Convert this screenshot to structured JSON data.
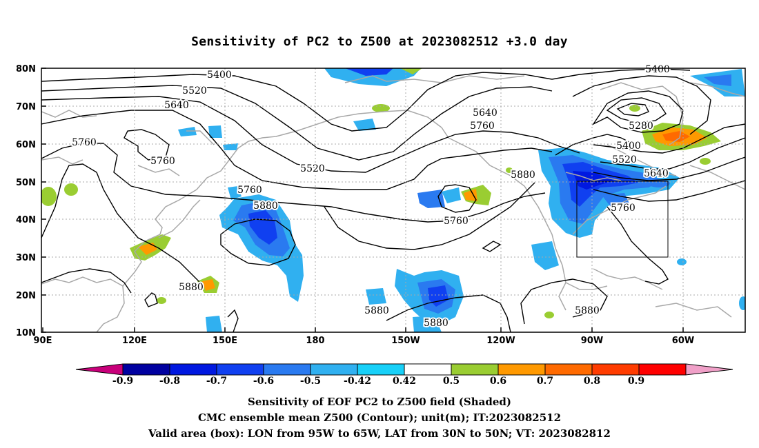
{
  "title": "Sensitivity of PC2 to Z500 at 2023082512 +3.0 day",
  "lat_ticks": [
    "80N",
    "70N",
    "60N",
    "50N",
    "40N",
    "30N",
    "20N",
    "10N"
  ],
  "lon_ticks": [
    "90E",
    "120E",
    "150E",
    "180",
    "150W",
    "120W",
    "90W",
    "60W"
  ],
  "contour_labels": {
    "l5400a": "5400",
    "l5520a": "5520",
    "l5640a": "5640",
    "l5760a": "5760",
    "l5760b": "5760",
    "l5760c": "5760",
    "l5880a": "5880",
    "l5520b": "5520",
    "l5640b": "5640",
    "l5760d": "5760",
    "l5880b": "5880",
    "l5760e": "5760",
    "l5880c": "5880",
    "l5880d": "5880",
    "l5880e": "5880",
    "l5400b": "5400",
    "l5280": "5280",
    "l5400c": "5400",
    "l5520c": "5520",
    "l5640c": "5640",
    "l5760f": "5760",
    "l5880f": "5880"
  },
  "colorbar": {
    "labels": [
      "-0.9",
      "-0.8",
      "-0.7",
      "-0.6",
      "-0.5",
      "-0.42",
      "0.42",
      "0.5",
      "0.6",
      "0.7",
      "0.8",
      "0.9"
    ],
    "colors": [
      "#c8007a",
      "#0000a0",
      "#0018e0",
      "#1040f0",
      "#2a7af0",
      "#30b0f0",
      "#18d0f8",
      "#ffffff",
      "#9acd32",
      "#ff9900",
      "#ff6a00",
      "#ff3c00",
      "#ff0000",
      "#f0a0c8"
    ]
  },
  "captions": {
    "line1": "Sensitivity of EOF PC2 to Z500 field (Shaded)",
    "line2": "CMC ensemble mean Z500 (Contour); unit(m); IT:2023082512",
    "line3": "Valid area (box): LON from 95W to 65W, LAT from 30N to 50N; VT: 2023082812"
  }
}
